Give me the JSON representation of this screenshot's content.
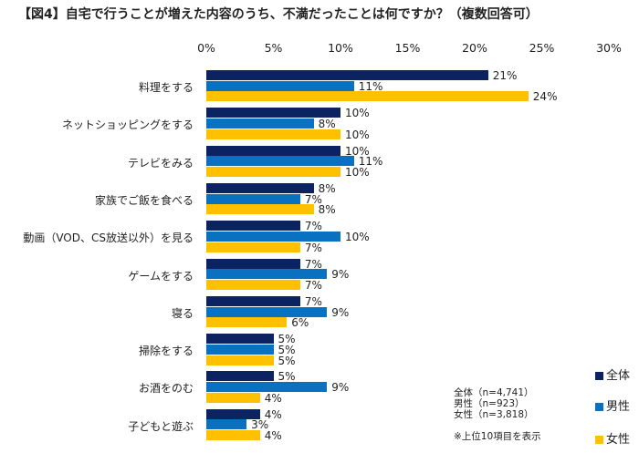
{
  "chart_data": {
    "type": "bar",
    "orientation": "horizontal",
    "title": "【図4】自宅で行うことが増えた内容のうち、不満だったことは何ですか？（複数回答可）",
    "xlim": [
      0,
      30
    ],
    "ticks": [
      "0%",
      "5%",
      "10%",
      "15%",
      "20%",
      "25%",
      "30%"
    ],
    "grid": false,
    "legend_placement": "bottom-right",
    "categories": [
      "料理をする",
      "ネットショッピングをする",
      "テレビをみる",
      "家族でご飯を食べる",
      "動画（VOD、CS放送以外）を見る",
      "ゲームをする",
      "寝る",
      "掃除をする",
      "お酒をのむ",
      "子どもと遊ぶ"
    ],
    "series": [
      {
        "name": "全体",
        "color": "#0b2361",
        "values": [
          21,
          10,
          10,
          8,
          7,
          7,
          7,
          5,
          5,
          4
        ]
      },
      {
        "name": "男性",
        "color": "#0a70c0",
        "values": [
          11,
          8,
          11,
          7,
          10,
          9,
          9,
          5,
          9,
          3
        ]
      },
      {
        "name": "女性",
        "color": "#ffc000",
        "values": [
          24,
          10,
          10,
          8,
          7,
          7,
          6,
          5,
          4,
          4
        ]
      }
    ],
    "notes": [
      "全体（n=4,741）",
      "男性（n=923）",
      "女性（n=3,818）",
      "※上位10項目を表示"
    ]
  }
}
